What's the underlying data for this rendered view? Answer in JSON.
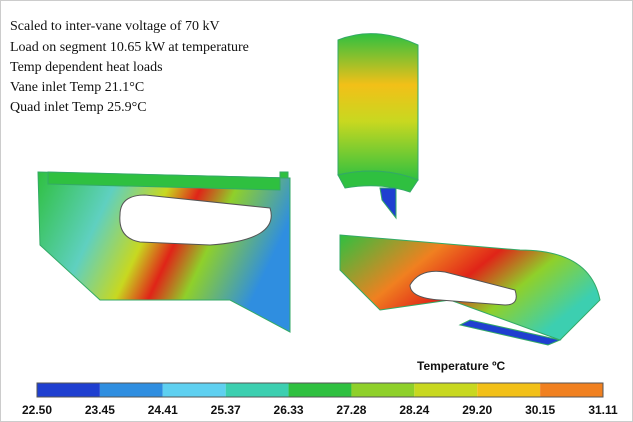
{
  "notes": [
    "Scaled to inter-vane voltage of  70 kV",
    "Load on segment   10.65  kW  at temperature",
    "Temp dependent heat loads",
    "Vane inlet Temp 21.1°C",
    "Quad inlet Temp 25.9°C"
  ],
  "colorbar": {
    "title": "Temperature ºC",
    "ticks": [
      "22.50",
      "23.45",
      "24.41",
      "25.37",
      "26.33",
      "27.28",
      "28.24",
      "29.20",
      "30.15",
      "31.11"
    ],
    "colors": [
      "#1f3fd0",
      "#2f8ee0",
      "#5fd0f0",
      "#3ccfb0",
      "#2fc040",
      "#8fd02a",
      "#c8d820",
      "#f2c018",
      "#f08020",
      "#e02418"
    ]
  }
}
